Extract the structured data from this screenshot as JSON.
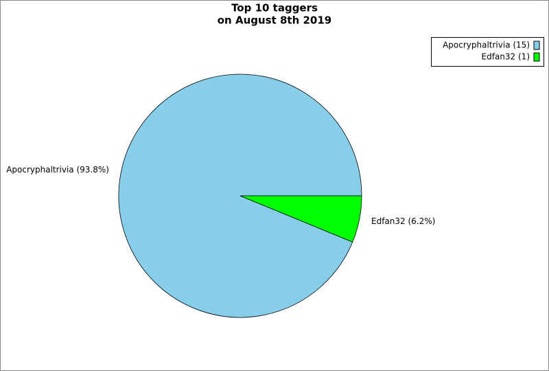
{
  "chart_data": {
    "type": "pie",
    "title": "Top 10 taggers",
    "subtitle": "on August 8th 2019",
    "legend_labels": [
      "Apocryphaltrivia (15)",
      "Edfan32 (1)"
    ],
    "values": [
      93.8,
      6.2
    ],
    "value_labels": [
      "Apocryphaltrivia (93.8%)",
      "Edfan32 (6.2%)"
    ],
    "colors": [
      "#87ceeb",
      "#00ff00"
    ],
    "legend": "upper right"
  }
}
